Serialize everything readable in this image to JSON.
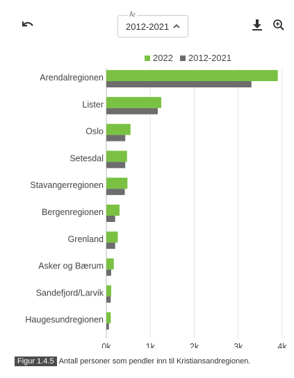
{
  "toolbar": {
    "select_label": "År",
    "select_value": "2012-2021",
    "back_icon": "back-arrow-icon",
    "download_icon": "download-icon",
    "zoom_icon": "zoom-icon"
  },
  "legend": [
    {
      "label": "2022",
      "color": "#7ac143"
    },
    {
      "label": "2012-2021",
      "color": "#6d6d6d"
    }
  ],
  "chart_data": {
    "type": "bar",
    "orientation": "horizontal",
    "categories": [
      "Arendalregionen",
      "Lister",
      "Oslo",
      "Setesdal",
      "Stavangerregionen",
      "Bergenregionen",
      "Grenland",
      "Asker og Bærum",
      "Sandefjord/Larvik",
      "Haugesundregionen"
    ],
    "series": [
      {
        "name": "2022",
        "color": "#7ac143",
        "values": [
          3900,
          1250,
          550,
          470,
          480,
          300,
          260,
          170,
          110,
          100
        ]
      },
      {
        "name": "2012-2021",
        "color": "#6d6d6d",
        "values": [
          3300,
          1170,
          430,
          430,
          420,
          200,
          200,
          110,
          100,
          60
        ]
      }
    ],
    "xlim": [
      0,
      4000
    ],
    "ticks": [
      0,
      1000,
      2000,
      3000,
      4000
    ],
    "tick_labels": [
      "0k",
      "1k",
      "2k",
      "3k",
      "4k"
    ],
    "grid": true
  },
  "caption": {
    "badge": "Figur 1.4.5",
    "text": "Antall personer som pendler inn til Kristiansandregionen."
  }
}
